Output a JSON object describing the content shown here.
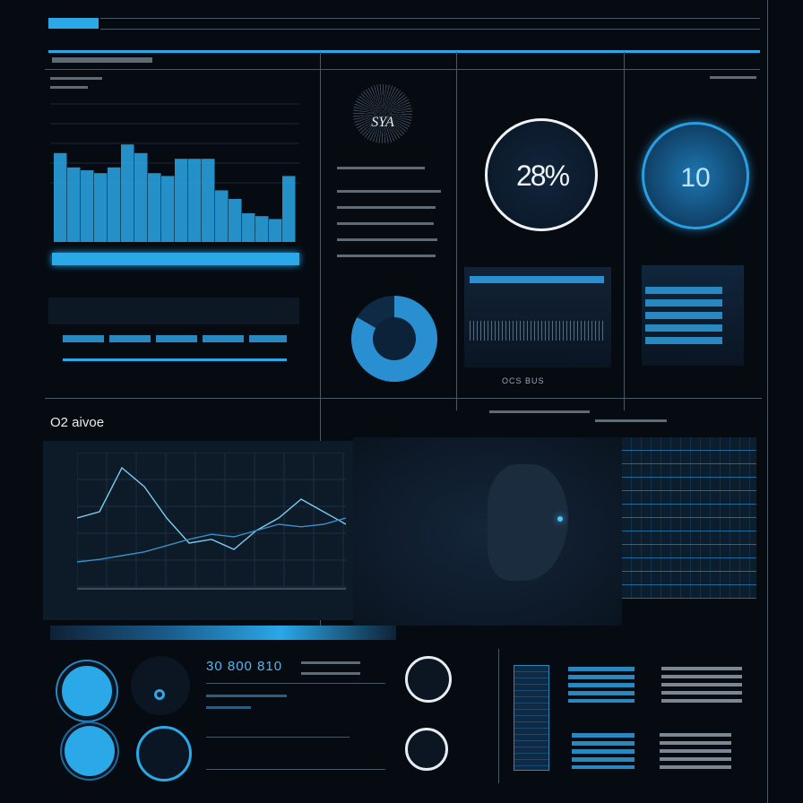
{
  "header": {
    "tab_label": "",
    "accent": "#2aa8e8"
  },
  "top_left": {
    "chart_bars": [
      62,
      52,
      50,
      48,
      52,
      68,
      62,
      48,
      46,
      58,
      58,
      58,
      36,
      30,
      20,
      18,
      16,
      46
    ]
  },
  "dial_top": {
    "label": "SYA"
  },
  "kpi_ring_1": {
    "value": "28%"
  },
  "kpi_ring_2": {
    "value": "10"
  },
  "panel_footer": {
    "label": "OCS BUS"
  },
  "mid_left": {
    "title": "O2 aivoe",
    "line_series": [
      [
        0.55,
        0.6,
        0.95,
        0.8,
        0.55,
        0.35,
        0.38,
        0.3,
        0.45,
        0.55,
        0.7,
        0.6,
        0.5
      ],
      [
        0.2,
        0.22,
        0.25,
        0.28,
        0.33,
        0.38,
        0.42,
        0.4,
        0.45,
        0.5,
        0.48,
        0.5,
        0.55
      ]
    ]
  },
  "bottom": {
    "title": "30 800 810"
  },
  "colors": {
    "background": "#060b12",
    "accent": "#2aa8e8",
    "panel": "#0b1522",
    "gridline": "#4a5766"
  }
}
